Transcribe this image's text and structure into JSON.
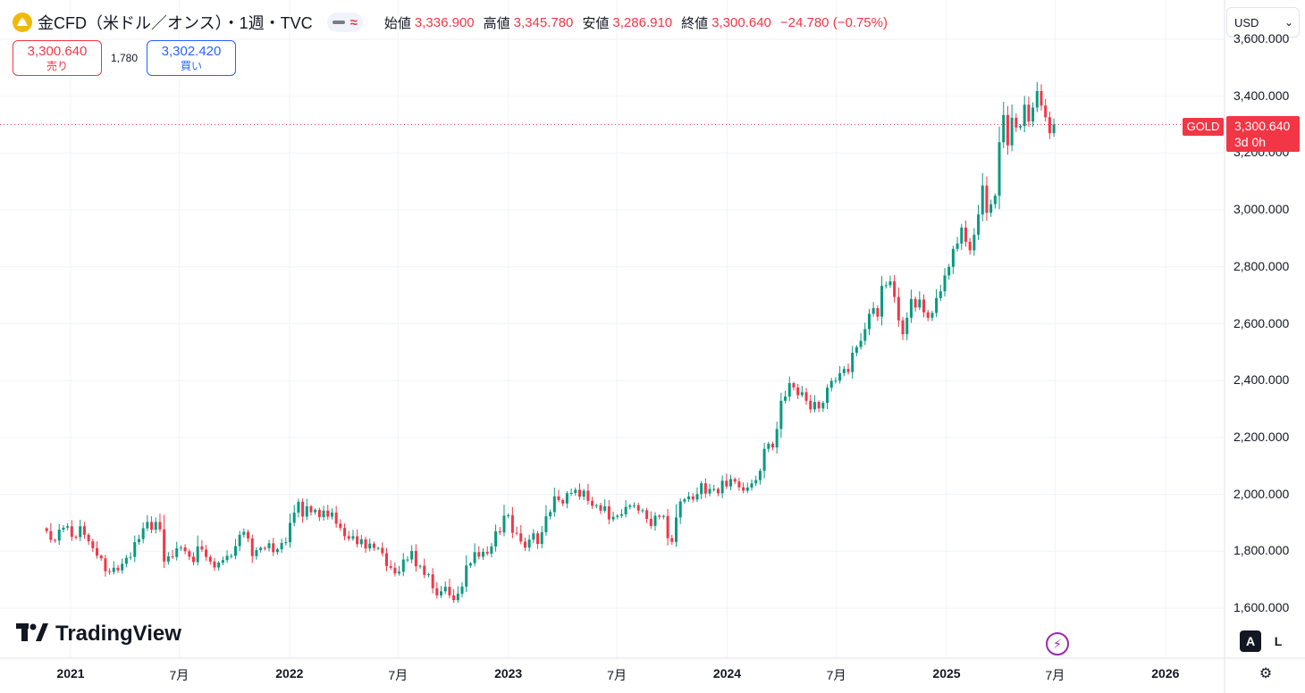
{
  "header": {
    "title": "金CFD（米ドル／オンス）・1週・TVC",
    "ohlc": [
      {
        "label": "始値",
        "value": "3,336.900"
      },
      {
        "label": "高値",
        "value": "3,345.780"
      },
      {
        "label": "安値",
        "value": "3,286.910"
      },
      {
        "label": "終値",
        "value": "3,300.640"
      }
    ],
    "change": "−24.780 (−0.75%)"
  },
  "trade": {
    "sell_price": "3,300.640",
    "sell_label": "売り",
    "spread": "1,780",
    "buy_price": "3,302.420",
    "buy_label": "買い"
  },
  "scale": {
    "currency": "USD",
    "price_tag": "3,300.640",
    "countdown": "3d 0h",
    "symbol_tag": "GOLD"
  },
  "branding": {
    "logo_text": "TradingView"
  },
  "controls": {
    "auto_label": "A",
    "log_label": "L"
  },
  "colors": {
    "up": "#089981",
    "down": "#f23645",
    "grid": "#f0f3fa",
    "accent": "#2962ff"
  },
  "chart_data": {
    "type": "candlestick",
    "interval": "1 week",
    "ylim": [
      1480,
      3600
    ],
    "yticks": [
      "1,600.000",
      "1,800.000",
      "2,000.000",
      "2,200.000",
      "2,400.000",
      "2,600.000",
      "2,800.000",
      "3,000.000",
      "3,200.000",
      "3,400.000",
      "3,600.000"
    ],
    "xticks": [
      {
        "label": "2021",
        "bold": true
      },
      {
        "label": "7月",
        "bold": false
      },
      {
        "label": "2022",
        "bold": true
      },
      {
        "label": "7月",
        "bold": false
      },
      {
        "label": "2023",
        "bold": true
      },
      {
        "label": "7月",
        "bold": false
      },
      {
        "label": "2024",
        "bold": true
      },
      {
        "label": "7月",
        "bold": false
      },
      {
        "label": "2025",
        "bold": true
      },
      {
        "label": "7月",
        "bold": false
      },
      {
        "label": "2026",
        "bold": true
      }
    ],
    "xtick_dates": [
      "2021-01-01",
      "2021-07-01",
      "2022-01-01",
      "2022-07-01",
      "2023-01-01",
      "2023-07-01",
      "2024-01-01",
      "2024-07-01",
      "2025-01-01",
      "2025-07-01",
      "2026-01-01"
    ],
    "first_week": "2020-11-22",
    "last_price": 3300.64,
    "closes": [
      1871,
      1840,
      1838,
      1876,
      1883,
      1888,
      1851,
      1850,
      1888,
      1858,
      1835,
      1811,
      1785,
      1775,
      1730,
      1727,
      1742,
      1733,
      1756,
      1777,
      1780,
      1832,
      1843,
      1881,
      1903,
      1876,
      1903,
      1877,
      1764,
      1782,
      1780,
      1811,
      1814,
      1800,
      1781,
      1762,
      1817,
      1806,
      1780,
      1764,
      1743,
      1760,
      1769,
      1784,
      1784,
      1818,
      1858,
      1868,
      1845,
      1783,
      1804,
      1812,
      1811,
      1828,
      1797,
      1807,
      1829,
      1832,
      1900,
      1936,
      1974,
      1922,
      1958,
      1937,
      1946,
      1920,
      1943,
      1922,
      1936,
      1897,
      1882,
      1853,
      1844,
      1853,
      1825,
      1842,
      1810,
      1827,
      1812,
      1812,
      1793,
      1748,
      1742,
      1722,
      1728,
      1771,
      1771,
      1801,
      1747,
      1749,
      1717,
      1719,
      1670,
      1645,
      1659,
      1675,
      1645,
      1628,
      1651,
      1676,
      1750,
      1758,
      1797,
      1781,
      1798,
      1792,
      1817,
      1870,
      1866,
      1925,
      1927,
      1865,
      1863,
      1834,
      1813,
      1841,
      1863,
      1826,
      1867,
      1923,
      1938,
      1993,
      1980,
      1968,
      2004,
      2005,
      2016,
      1992,
      2013,
      1977,
      1960,
      1962,
      1943,
      1958,
      1912,
      1921,
      1925,
      1930,
      1956,
      1961,
      1962,
      1943,
      1944,
      1914,
      1889,
      1925,
      1921,
      1924,
      1846,
      1833,
      1919,
      1975,
      1983,
      1993,
      1982,
      2001,
      2039,
      2003,
      2019,
      2019,
      2004,
      2048,
      2028,
      2054,
      2045,
      2025,
      2013,
      2024,
      2039,
      2050,
      2083,
      2160,
      2178,
      2165,
      2230,
      2329,
      2344,
      2391,
      2376,
      2349,
      2359,
      2329,
      2299,
      2325,
      2302,
      2322,
      2375,
      2399,
      2400,
      2426,
      2441,
      2430,
      2498,
      2518,
      2540,
      2581,
      2635,
      2655,
      2625,
      2733,
      2735,
      2749,
      2694,
      2612,
      2563,
      2621,
      2687,
      2657,
      2685,
      2640,
      2621,
      2638,
      2690,
      2714,
      2770,
      2800,
      2863,
      2882,
      2938,
      2888,
      2858,
      2913,
      2984,
      3086,
      2990,
      3020,
      3050,
      3238,
      3334,
      3227,
      3324,
      3290,
      3295,
      3370,
      3311,
      3360,
      3418,
      3367,
      3326,
      3270,
      3300.64
    ]
  }
}
